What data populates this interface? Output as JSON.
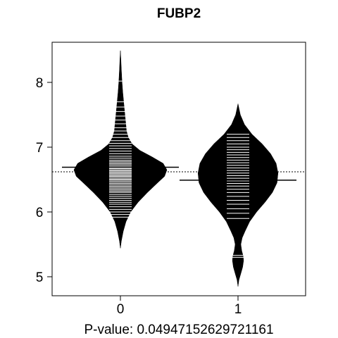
{
  "chart_data": {
    "type": "beanplot",
    "title": "FUBP2",
    "xlabel": "P-value: 0.04947152629721161",
    "ylabel": "",
    "categories": [
      "0",
      "1"
    ],
    "y_ticks": [
      5,
      6,
      7,
      8
    ],
    "ylim": [
      4.7,
      8.65
    ],
    "overall_mean": 6.62,
    "grid": false,
    "legend": "none",
    "series": [
      {
        "category": "0",
        "mean": 6.69,
        "range": [
          5.44,
          8.49
        ],
        "density": [
          [
            5.44,
            0.0
          ],
          [
            5.55,
            0.02
          ],
          [
            5.7,
            0.06
          ],
          [
            5.85,
            0.12
          ],
          [
            6.0,
            0.22
          ],
          [
            6.15,
            0.38
          ],
          [
            6.3,
            0.58
          ],
          [
            6.45,
            0.8
          ],
          [
            6.55,
            0.95
          ],
          [
            6.65,
            1.0
          ],
          [
            6.75,
            0.92
          ],
          [
            6.85,
            0.68
          ],
          [
            6.95,
            0.42
          ],
          [
            7.05,
            0.25
          ],
          [
            7.15,
            0.17
          ],
          [
            7.25,
            0.13
          ],
          [
            7.4,
            0.11
          ],
          [
            7.55,
            0.09
          ],
          [
            7.7,
            0.07
          ],
          [
            7.85,
            0.05
          ],
          [
            8.0,
            0.035
          ],
          [
            8.2,
            0.02
          ],
          [
            8.35,
            0.01
          ],
          [
            8.49,
            0.0
          ]
        ],
        "observations": [
          5.92,
          5.96,
          6.0,
          6.04,
          6.08,
          6.12,
          6.15,
          6.18,
          6.21,
          6.24,
          6.27,
          6.3,
          6.32,
          6.34,
          6.36,
          6.38,
          6.4,
          6.42,
          6.44,
          6.46,
          6.48,
          6.5,
          6.51,
          6.53,
          6.55,
          6.56,
          6.58,
          6.59,
          6.61,
          6.62,
          6.64,
          6.65,
          6.67,
          6.68,
          6.7,
          6.72,
          6.74,
          6.76,
          6.78,
          6.8,
          6.83,
          6.86,
          6.9,
          6.94,
          6.98,
          7.02,
          7.06,
          7.1,
          7.15,
          7.2,
          7.25,
          7.3,
          7.36,
          7.42,
          7.48,
          7.55,
          7.62,
          7.7,
          8.02
        ]
      },
      {
        "category": "1",
        "mean": 6.49,
        "range": [
          4.85,
          7.67
        ],
        "density": [
          [
            4.85,
            0.0
          ],
          [
            4.95,
            0.02
          ],
          [
            5.05,
            0.06
          ],
          [
            5.15,
            0.1
          ],
          [
            5.25,
            0.12
          ],
          [
            5.32,
            0.11
          ],
          [
            5.4,
            0.08
          ],
          [
            5.5,
            0.06
          ],
          [
            5.6,
            0.09
          ],
          [
            5.7,
            0.15
          ],
          [
            5.85,
            0.25
          ],
          [
            6.0,
            0.4
          ],
          [
            6.15,
            0.58
          ],
          [
            6.3,
            0.74
          ],
          [
            6.45,
            0.84
          ],
          [
            6.6,
            0.86
          ],
          [
            6.75,
            0.82
          ],
          [
            6.9,
            0.7
          ],
          [
            7.05,
            0.52
          ],
          [
            7.2,
            0.3
          ],
          [
            7.35,
            0.14
          ],
          [
            7.5,
            0.05
          ],
          [
            7.67,
            0.0
          ]
        ],
        "observations": [
          5.3,
          5.33,
          5.9,
          5.98,
          6.05,
          6.12,
          6.18,
          6.24,
          6.3,
          6.35,
          6.4,
          6.44,
          6.48,
          6.52,
          6.56,
          6.6,
          6.64,
          6.68,
          6.72,
          6.76,
          6.8,
          6.84,
          6.88,
          6.92,
          6.96,
          7.0,
          7.05,
          7.1,
          7.15,
          7.2
        ]
      }
    ]
  }
}
